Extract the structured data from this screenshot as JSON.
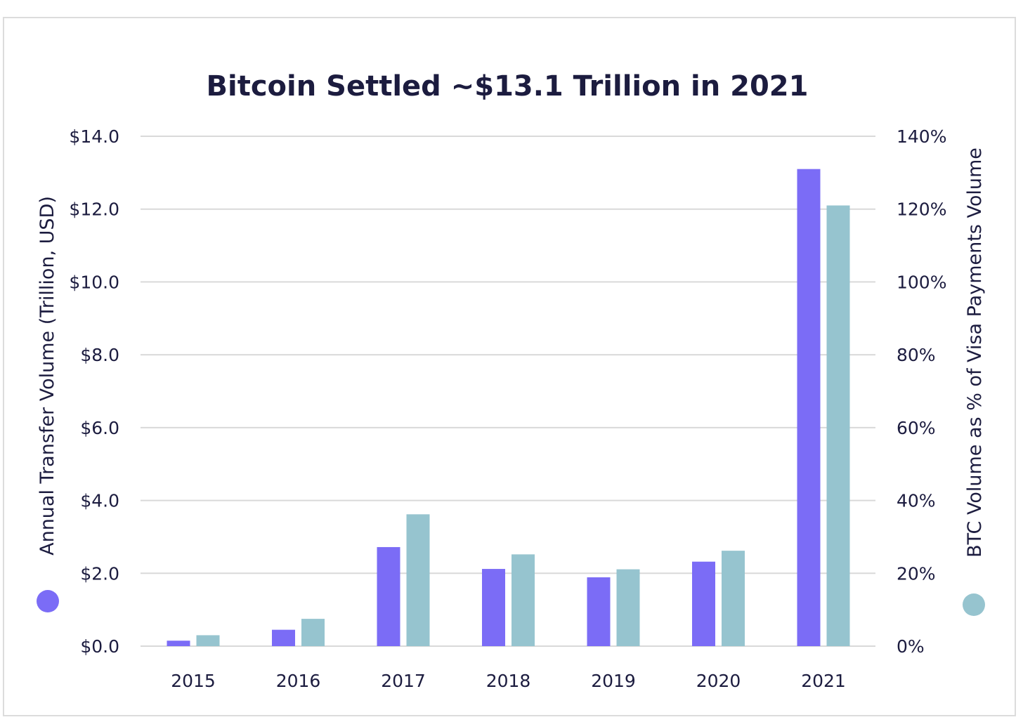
{
  "chart_data": {
    "type": "bar",
    "title": "Bitcoin Settled ~$13.1 Trillion in 2021",
    "categories": [
      "2015",
      "2016",
      "2017",
      "2018",
      "2019",
      "2020",
      "2021"
    ],
    "series": [
      {
        "name": "Annual Transfer Volume (Trillion, USD)",
        "axis": "left",
        "color": "#7b6cf6",
        "values": [
          0.15,
          0.45,
          2.72,
          2.12,
          1.89,
          2.32,
          13.1
        ]
      },
      {
        "name": "BTC Volume as % of Visa Payments Volume",
        "axis": "right",
        "color": "#96c4cf",
        "values": [
          3,
          7.5,
          36.2,
          25.2,
          21.1,
          26.2,
          121
        ]
      }
    ],
    "ylabel": "Annual Transfer Volume (Trillion, USD)",
    "ylabel_right": "BTC Volume as % of Visa Payments Volume",
    "ylim": [
      0,
      14
    ],
    "ylim_right": [
      0,
      140
    ],
    "yticks": [
      "$0.0",
      "$2.0",
      "$4.0",
      "$6.0",
      "$8.0",
      "$10.0",
      "$12.0",
      "$14.0"
    ],
    "yticks_right": [
      "0%",
      "20%",
      "40%",
      "60%",
      "80%",
      "100%",
      "120%",
      "140%"
    ],
    "grid": true,
    "legend": "dots beside axis labels"
  }
}
